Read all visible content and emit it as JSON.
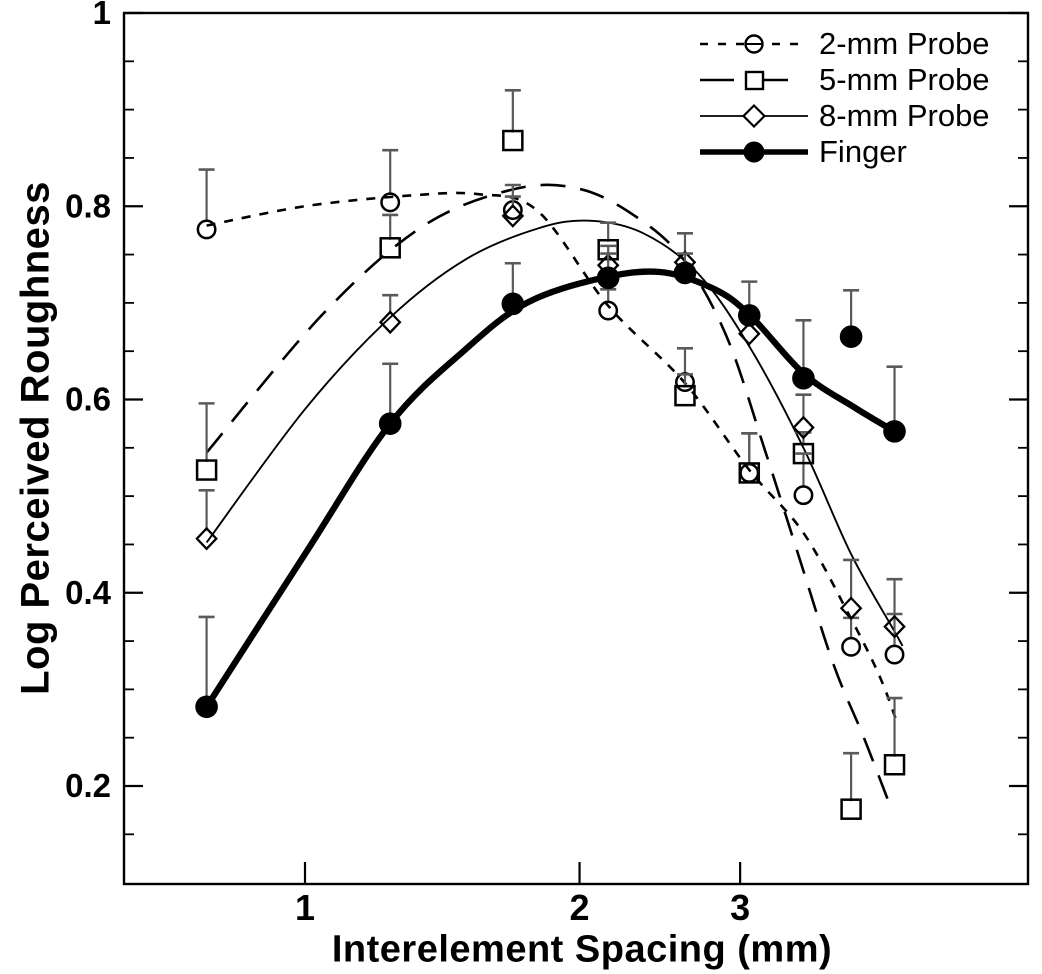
{
  "chart_data": {
    "type": "scatter",
    "title": "",
    "xlabel": "Interelement Spacing (mm)",
    "ylabel": "Log Perceived Roughness",
    "x_axis": {
      "scale": "log",
      "ticks": [
        1,
        2,
        3
      ],
      "tick_labels": [
        "1",
        "2",
        "3"
      ],
      "min": 0.63,
      "max": 6.2
    },
    "y_axis": {
      "scale": "linear",
      "major_ticks": [
        1.0,
        0.8,
        0.6,
        0.4,
        0.2
      ],
      "tick_labels": [
        "1",
        "0.8",
        "0.6",
        "0.4",
        "0.2"
      ],
      "minor_tick_step": 0.05,
      "min": 0.1,
      "max": 1.0
    },
    "grid": "off",
    "legend_position": "top-right",
    "x": [
      0.78,
      1.24,
      1.69,
      2.15,
      2.61,
      3.07,
      3.52,
      3.97,
      4.43
    ],
    "series": [
      {
        "name": "2-mm Probe",
        "marker": "open-circle",
        "line_style": "dashed",
        "values": [
          0.776,
          0.804,
          0.796,
          0.692,
          0.618,
          0.524,
          0.501,
          0.344,
          0.336
        ],
        "err_up": [
          0.062,
          0.054,
          0.026,
          0.022,
          0.035,
          0.041,
          0.043,
          0.03,
          0.042
        ],
        "curve": [
          [
            0.78,
            0.78
          ],
          [
            1.0,
            0.8
          ],
          [
            1.3,
            0.811
          ],
          [
            1.55,
            0.8125
          ],
          [
            1.8,
            0.795
          ],
          [
            2.15,
            0.697
          ],
          [
            2.61,
            0.617
          ],
          [
            3.07,
            0.527
          ],
          [
            3.52,
            0.462
          ],
          [
            3.97,
            0.373
          ],
          [
            4.26,
            0.315
          ],
          [
            4.45,
            0.268
          ]
        ]
      },
      {
        "name": "5-mm Probe",
        "marker": "open-square",
        "line_style": "long-dash",
        "values": [
          0.527,
          0.757,
          0.868,
          0.755,
          0.604,
          0.524,
          0.544,
          0.176,
          0.222
        ],
        "err_up": [
          0.069,
          0.034,
          0.052,
          0.028,
          0.022,
          0.041,
          0.022,
          0.058,
          0.069
        ],
        "curve": [
          [
            0.78,
            0.545
          ],
          [
            1.05,
            0.69
          ],
          [
            1.35,
            0.78
          ],
          [
            1.7,
            0.818
          ],
          [
            2.0,
            0.818
          ],
          [
            2.3,
            0.79
          ],
          [
            2.6,
            0.745
          ],
          [
            2.9,
            0.665
          ],
          [
            3.2,
            0.545
          ],
          [
            3.5,
            0.43
          ],
          [
            3.8,
            0.325
          ],
          [
            4.1,
            0.25
          ],
          [
            4.4,
            0.175
          ]
        ]
      },
      {
        "name": "8-mm Probe",
        "marker": "open-diamond",
        "line_style": "solid-thin",
        "values": [
          0.456,
          0.68,
          0.79,
          0.739,
          0.742,
          0.668,
          0.571,
          0.384,
          0.365
        ],
        "err_up": [
          0.05,
          0.028,
          0.02,
          0.02,
          0.03,
          0.02,
          0.034,
          0.05,
          0.049
        ],
        "curve": [
          [
            0.78,
            0.452
          ],
          [
            1.0,
            0.59
          ],
          [
            1.24,
            0.685
          ],
          [
            1.5,
            0.745
          ],
          [
            1.8,
            0.777
          ],
          [
            2.05,
            0.785
          ],
          [
            2.35,
            0.772
          ],
          [
            2.7,
            0.73
          ],
          [
            3.07,
            0.655
          ],
          [
            3.52,
            0.55
          ],
          [
            3.97,
            0.44
          ],
          [
            4.43,
            0.36
          ],
          [
            4.52,
            0.345
          ]
        ]
      },
      {
        "name": "Finger",
        "marker": "filled-circle",
        "line_style": "solid-thick",
        "values": [
          0.282,
          0.575,
          0.699,
          0.726,
          0.731,
          0.687,
          0.622,
          0.665,
          0.567
        ],
        "err_up": [
          0.093,
          0.062,
          0.042,
          0.025,
          0.02,
          0.035,
          0.06,
          0.048,
          0.067
        ],
        "curve": [
          [
            0.78,
            0.282
          ],
          [
            1.0,
            0.44
          ],
          [
            1.24,
            0.575
          ],
          [
            1.5,
            0.652
          ],
          [
            1.75,
            0.7
          ],
          [
            2.1,
            0.725
          ],
          [
            2.45,
            0.732
          ],
          [
            2.8,
            0.715
          ],
          [
            3.07,
            0.688
          ],
          [
            3.52,
            0.627
          ],
          [
            4.0,
            0.592
          ],
          [
            4.43,
            0.567
          ]
        ]
      }
    ]
  }
}
